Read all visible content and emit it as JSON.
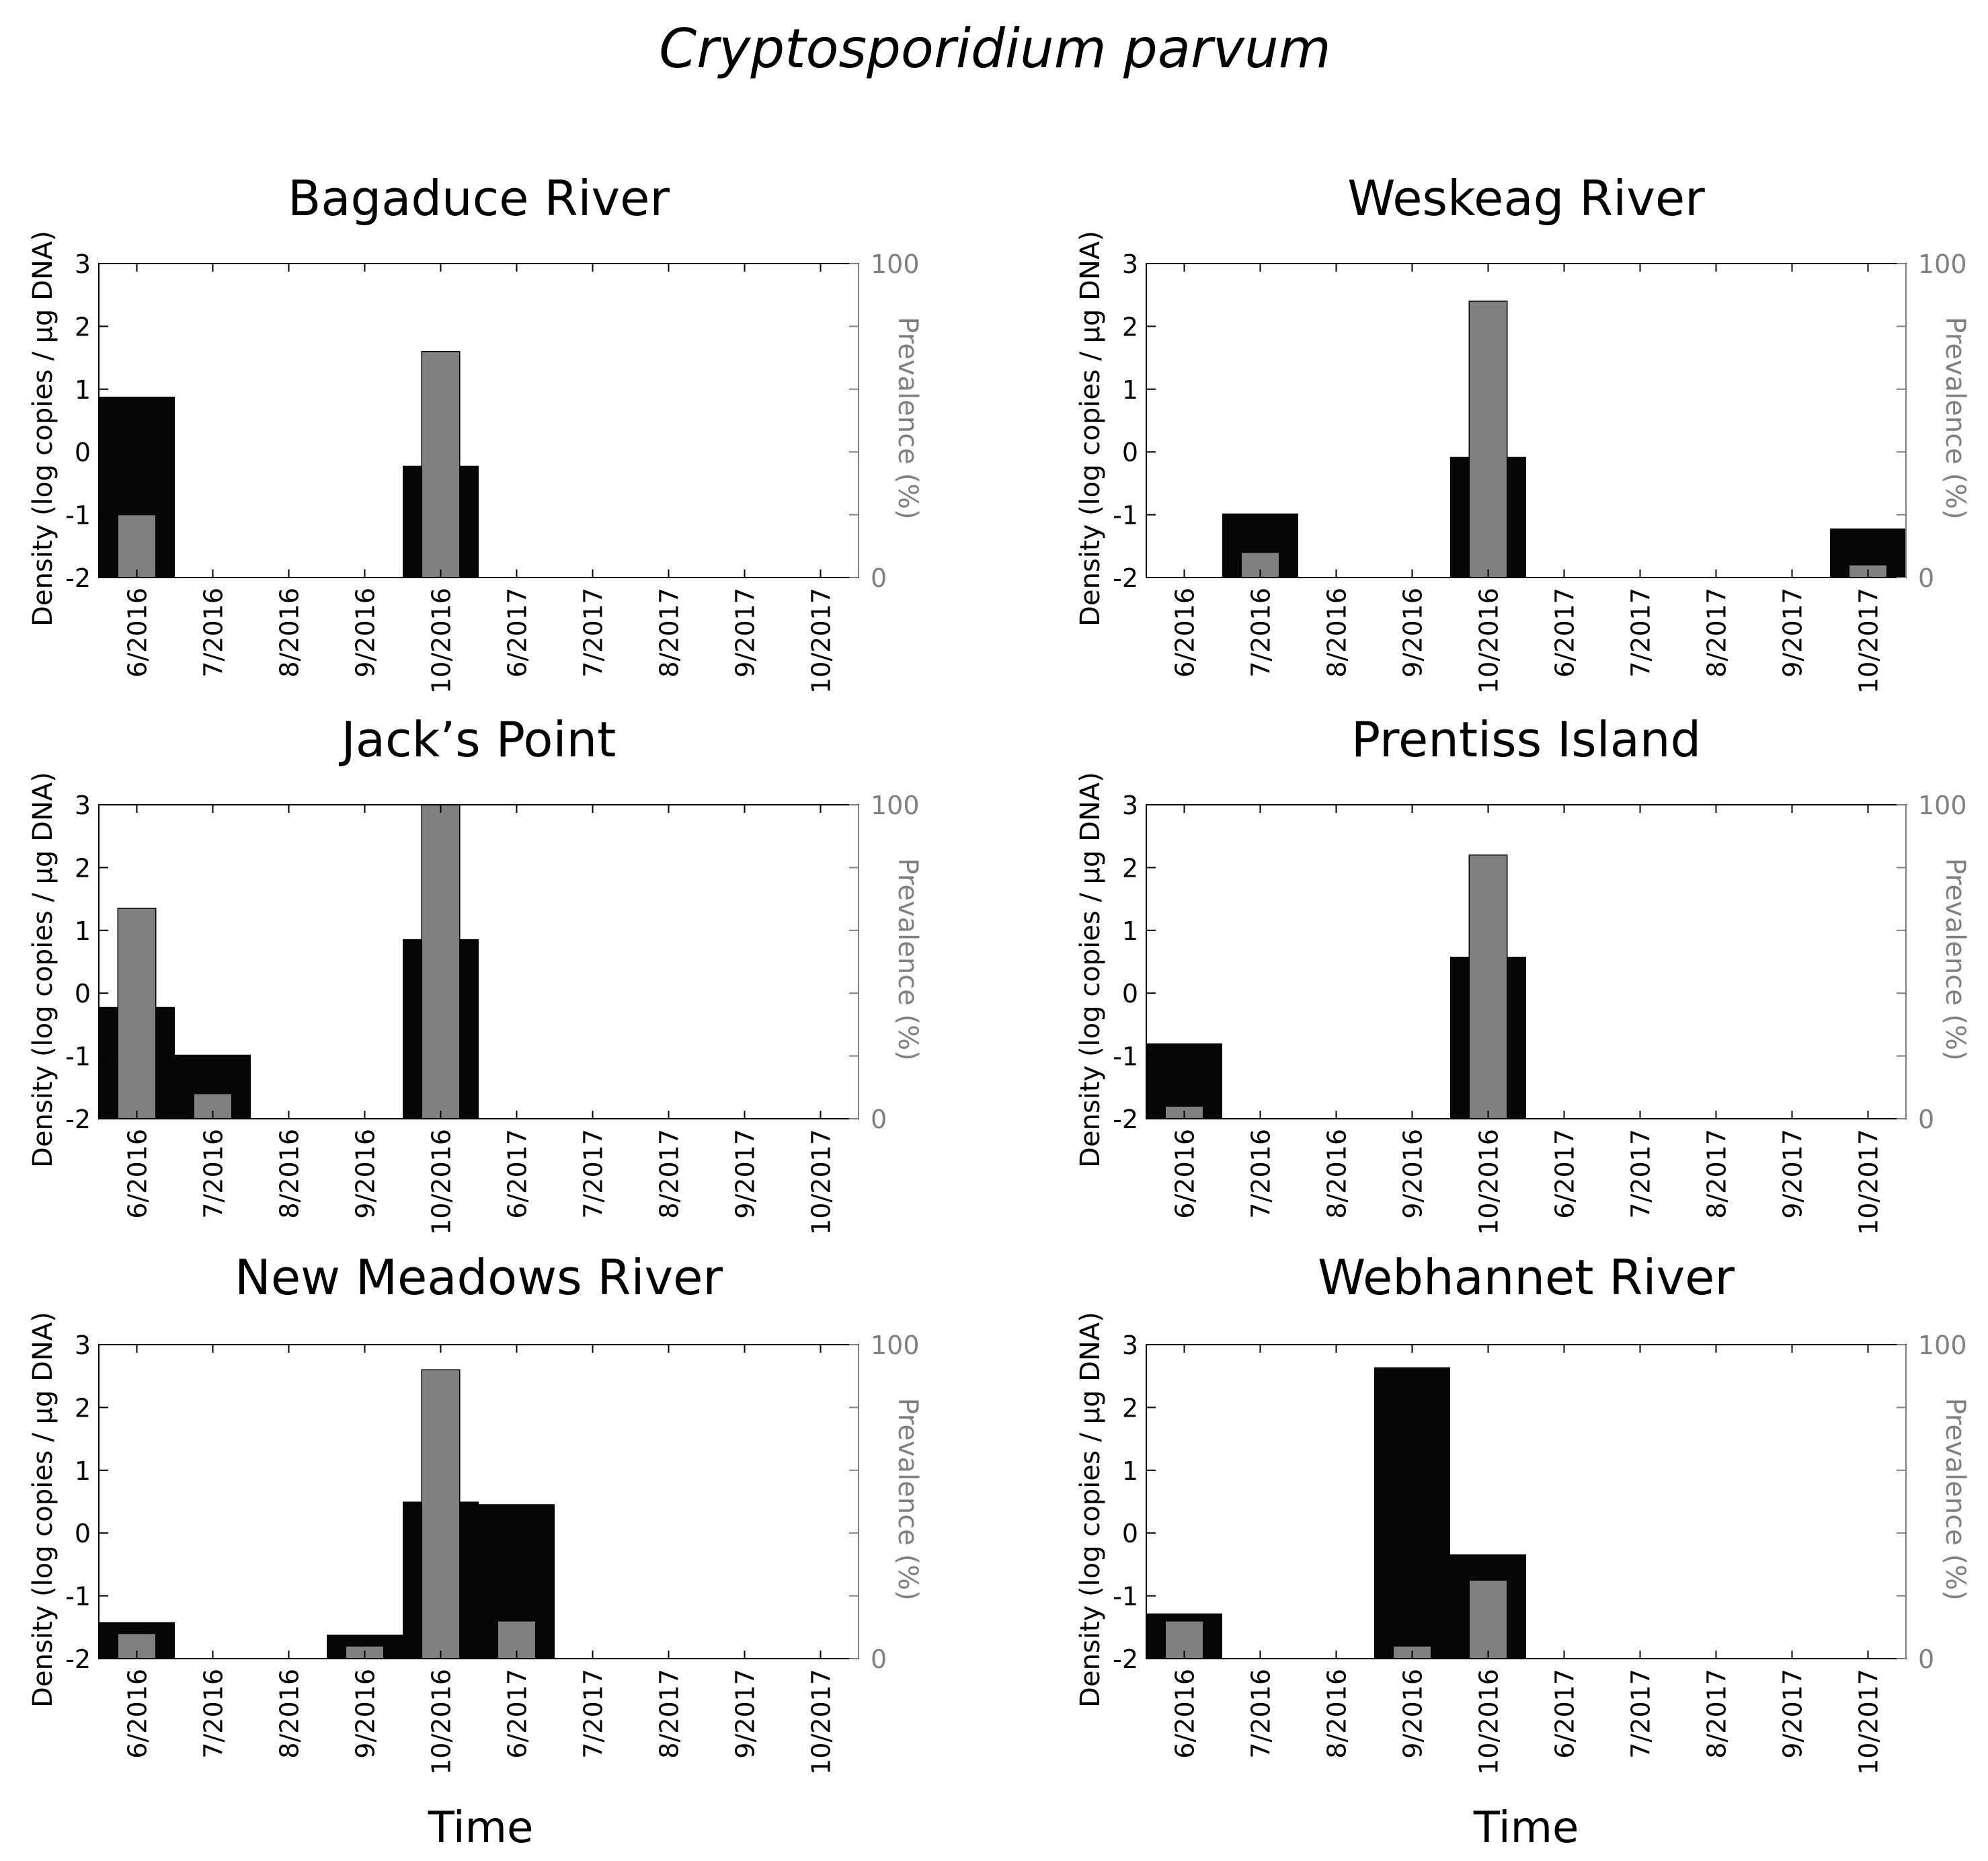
{
  "figure": {
    "title": "Cryptosporidium parvum",
    "xlabel": "Time",
    "colors": {
      "density": "#060808",
      "prevalence": "#808080",
      "axis": "#000000",
      "right_axis": "#808080"
    }
  },
  "chart_data": [
    {
      "type": "bar",
      "title": "Bagaduce River",
      "categories": [
        "6/2016",
        "7/2016",
        "8/2016",
        "9/2016",
        "10/2016",
        "6/2017",
        "7/2017",
        "8/2017",
        "9/2017",
        "10/2017"
      ],
      "ylabel": "Density  (log copies / µg DNA)",
      "y2label": "Prevalence (%)",
      "ylim": [
        -2,
        3
      ],
      "y2lim": [
        0,
        100
      ],
      "yticks": [
        "-2",
        "-1",
        "0",
        "1",
        "2",
        "3"
      ],
      "y2ticks": [
        "0",
        "100"
      ],
      "series": [
        {
          "name": "Density",
          "axis": "left",
          "values": [
            0.88,
            null,
            null,
            null,
            -0.22,
            null,
            null,
            null,
            null,
            null
          ]
        },
        {
          "name": "Prevalence",
          "axis": "right",
          "values": [
            20,
            null,
            null,
            null,
            72,
            null,
            null,
            null,
            null,
            null
          ]
        }
      ]
    },
    {
      "type": "bar",
      "title": "Weskeag River",
      "categories": [
        "6/2016",
        "7/2016",
        "8/2016",
        "9/2016",
        "10/2016",
        "6/2017",
        "7/2017",
        "8/2017",
        "9/2017",
        "10/2017"
      ],
      "ylabel": "Density  (log copies / µg DNA)",
      "y2label": "Prevalence (%)",
      "ylim": [
        -2,
        3
      ],
      "y2lim": [
        0,
        100
      ],
      "yticks": [
        "-2",
        "-1",
        "0",
        "1",
        "2",
        "3"
      ],
      "y2ticks": [
        "0",
        "100"
      ],
      "series": [
        {
          "name": "Density",
          "axis": "left",
          "values": [
            null,
            -0.98,
            null,
            null,
            -0.08,
            null,
            null,
            null,
            null,
            -1.22
          ]
        },
        {
          "name": "Prevalence",
          "axis": "right",
          "values": [
            null,
            8,
            null,
            null,
            88,
            null,
            null,
            null,
            null,
            4
          ]
        }
      ]
    },
    {
      "type": "bar",
      "title": "Jack’s  Point",
      "categories": [
        "6/2016",
        "7/2016",
        "8/2016",
        "9/2016",
        "10/2016",
        "6/2017",
        "7/2017",
        "8/2017",
        "9/2017",
        "10/2017"
      ],
      "ylabel": "Density  (log copies / µg DNA)",
      "y2label": "Prevalence (%)",
      "ylim": [
        -2,
        3
      ],
      "y2lim": [
        0,
        100
      ],
      "yticks": [
        "-2",
        "-1",
        "0",
        "1",
        "2",
        "3"
      ],
      "y2ticks": [
        "0",
        "100"
      ],
      "series": [
        {
          "name": "Density",
          "axis": "left",
          "values": [
            -0.22,
            -0.98,
            null,
            null,
            0.86,
            null,
            null,
            null,
            null,
            null
          ]
        },
        {
          "name": "Prevalence",
          "axis": "right",
          "values": [
            67,
            8,
            null,
            null,
            100,
            null,
            null,
            null,
            null,
            null
          ]
        }
      ]
    },
    {
      "type": "bar",
      "title": "Prentiss Island",
      "categories": [
        "6/2016",
        "7/2016",
        "8/2016",
        "9/2016",
        "10/2016",
        "6/2017",
        "7/2017",
        "8/2017",
        "9/2017",
        "10/2017"
      ],
      "ylabel": "Density  (log copies / µg DNA)",
      "y2label": "Prevalence (%)",
      "ylim": [
        -2,
        3
      ],
      "y2lim": [
        0,
        100
      ],
      "yticks": [
        "-2",
        "-1",
        "0",
        "1",
        "2",
        "3"
      ],
      "y2ticks": [
        "0",
        "100"
      ],
      "series": [
        {
          "name": "Density",
          "axis": "left",
          "values": [
            -0.8,
            null,
            null,
            null,
            0.58,
            null,
            null,
            null,
            null,
            null
          ]
        },
        {
          "name": "Prevalence",
          "axis": "right",
          "values": [
            4,
            null,
            null,
            null,
            84,
            null,
            null,
            null,
            null,
            null
          ]
        }
      ]
    },
    {
      "type": "bar",
      "title": "New  Meadows River",
      "categories": [
        "6/2016",
        "7/2016",
        "8/2016",
        "9/2016",
        "10/2016",
        "6/2017",
        "7/2017",
        "8/2017",
        "9/2017",
        "10/2017"
      ],
      "ylabel": "Density  (log copies / µg DNA)",
      "y2label": "Prevalence (%)",
      "ylim": [
        -2,
        3
      ],
      "y2lim": [
        0,
        100
      ],
      "yticks": [
        "-2",
        "-1",
        "0",
        "1",
        "2",
        "3"
      ],
      "y2ticks": [
        "0",
        "100"
      ],
      "series": [
        {
          "name": "Density",
          "axis": "left",
          "values": [
            -1.42,
            null,
            null,
            -1.62,
            0.5,
            0.46,
            null,
            null,
            null,
            null
          ]
        },
        {
          "name": "Prevalence",
          "axis": "right",
          "values": [
            8,
            null,
            null,
            4,
            92,
            12,
            null,
            null,
            null,
            null
          ]
        }
      ]
    },
    {
      "type": "bar",
      "title": "Webhannet River",
      "categories": [
        "6/2016",
        "7/2016",
        "8/2016",
        "9/2016",
        "10/2016",
        "6/2017",
        "7/2017",
        "8/2017",
        "9/2017",
        "10/2017"
      ],
      "ylabel": "Density (log copies / µg DNA)",
      "y2label": "Prevalence (%)",
      "ylim": [
        -2,
        3
      ],
      "y2lim": [
        0,
        100
      ],
      "yticks": [
        "-2",
        "-1",
        "0",
        "1",
        "2",
        "3"
      ],
      "y2ticks": [
        "0",
        "100"
      ],
      "series": [
        {
          "name": "Density",
          "axis": "left",
          "values": [
            -1.28,
            null,
            null,
            2.64,
            -0.34,
            null,
            null,
            null,
            null,
            null
          ]
        },
        {
          "name": "Prevalence",
          "axis": "right",
          "values": [
            12,
            null,
            null,
            4,
            25,
            null,
            null,
            null,
            null,
            null
          ]
        }
      ]
    }
  ]
}
